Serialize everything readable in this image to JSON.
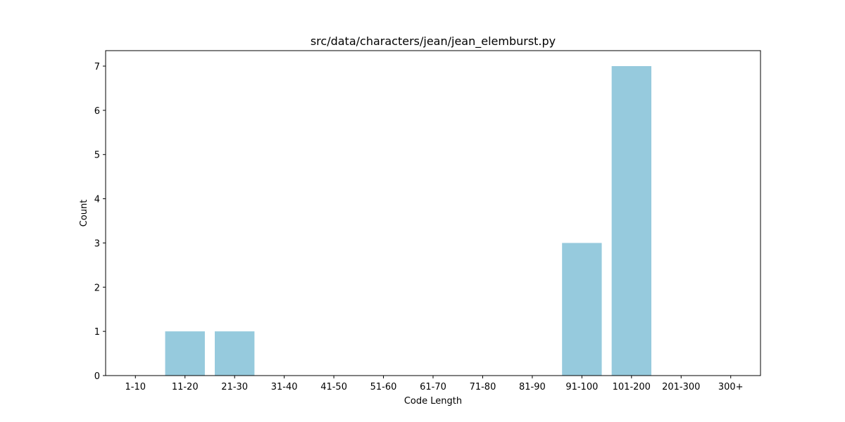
{
  "chart_data": {
    "type": "bar",
    "title": "src/data/characters/jean/jean_elemburst.py",
    "xlabel": "Code Length",
    "ylabel": "Count",
    "categories": [
      "1-10",
      "11-20",
      "21-30",
      "31-40",
      "41-50",
      "51-60",
      "61-70",
      "71-80",
      "81-90",
      "91-100",
      "101-200",
      "201-300",
      "300+"
    ],
    "values": [
      0,
      1,
      1,
      0,
      0,
      0,
      0,
      0,
      0,
      3,
      7,
      0,
      0
    ],
    "yticks": [
      "0",
      "1",
      "2",
      "3",
      "4",
      "5",
      "6",
      "7"
    ],
    "ylim": [
      0,
      7.35
    ],
    "bar_color": "#96cadd",
    "grid": false,
    "legend": "none"
  }
}
